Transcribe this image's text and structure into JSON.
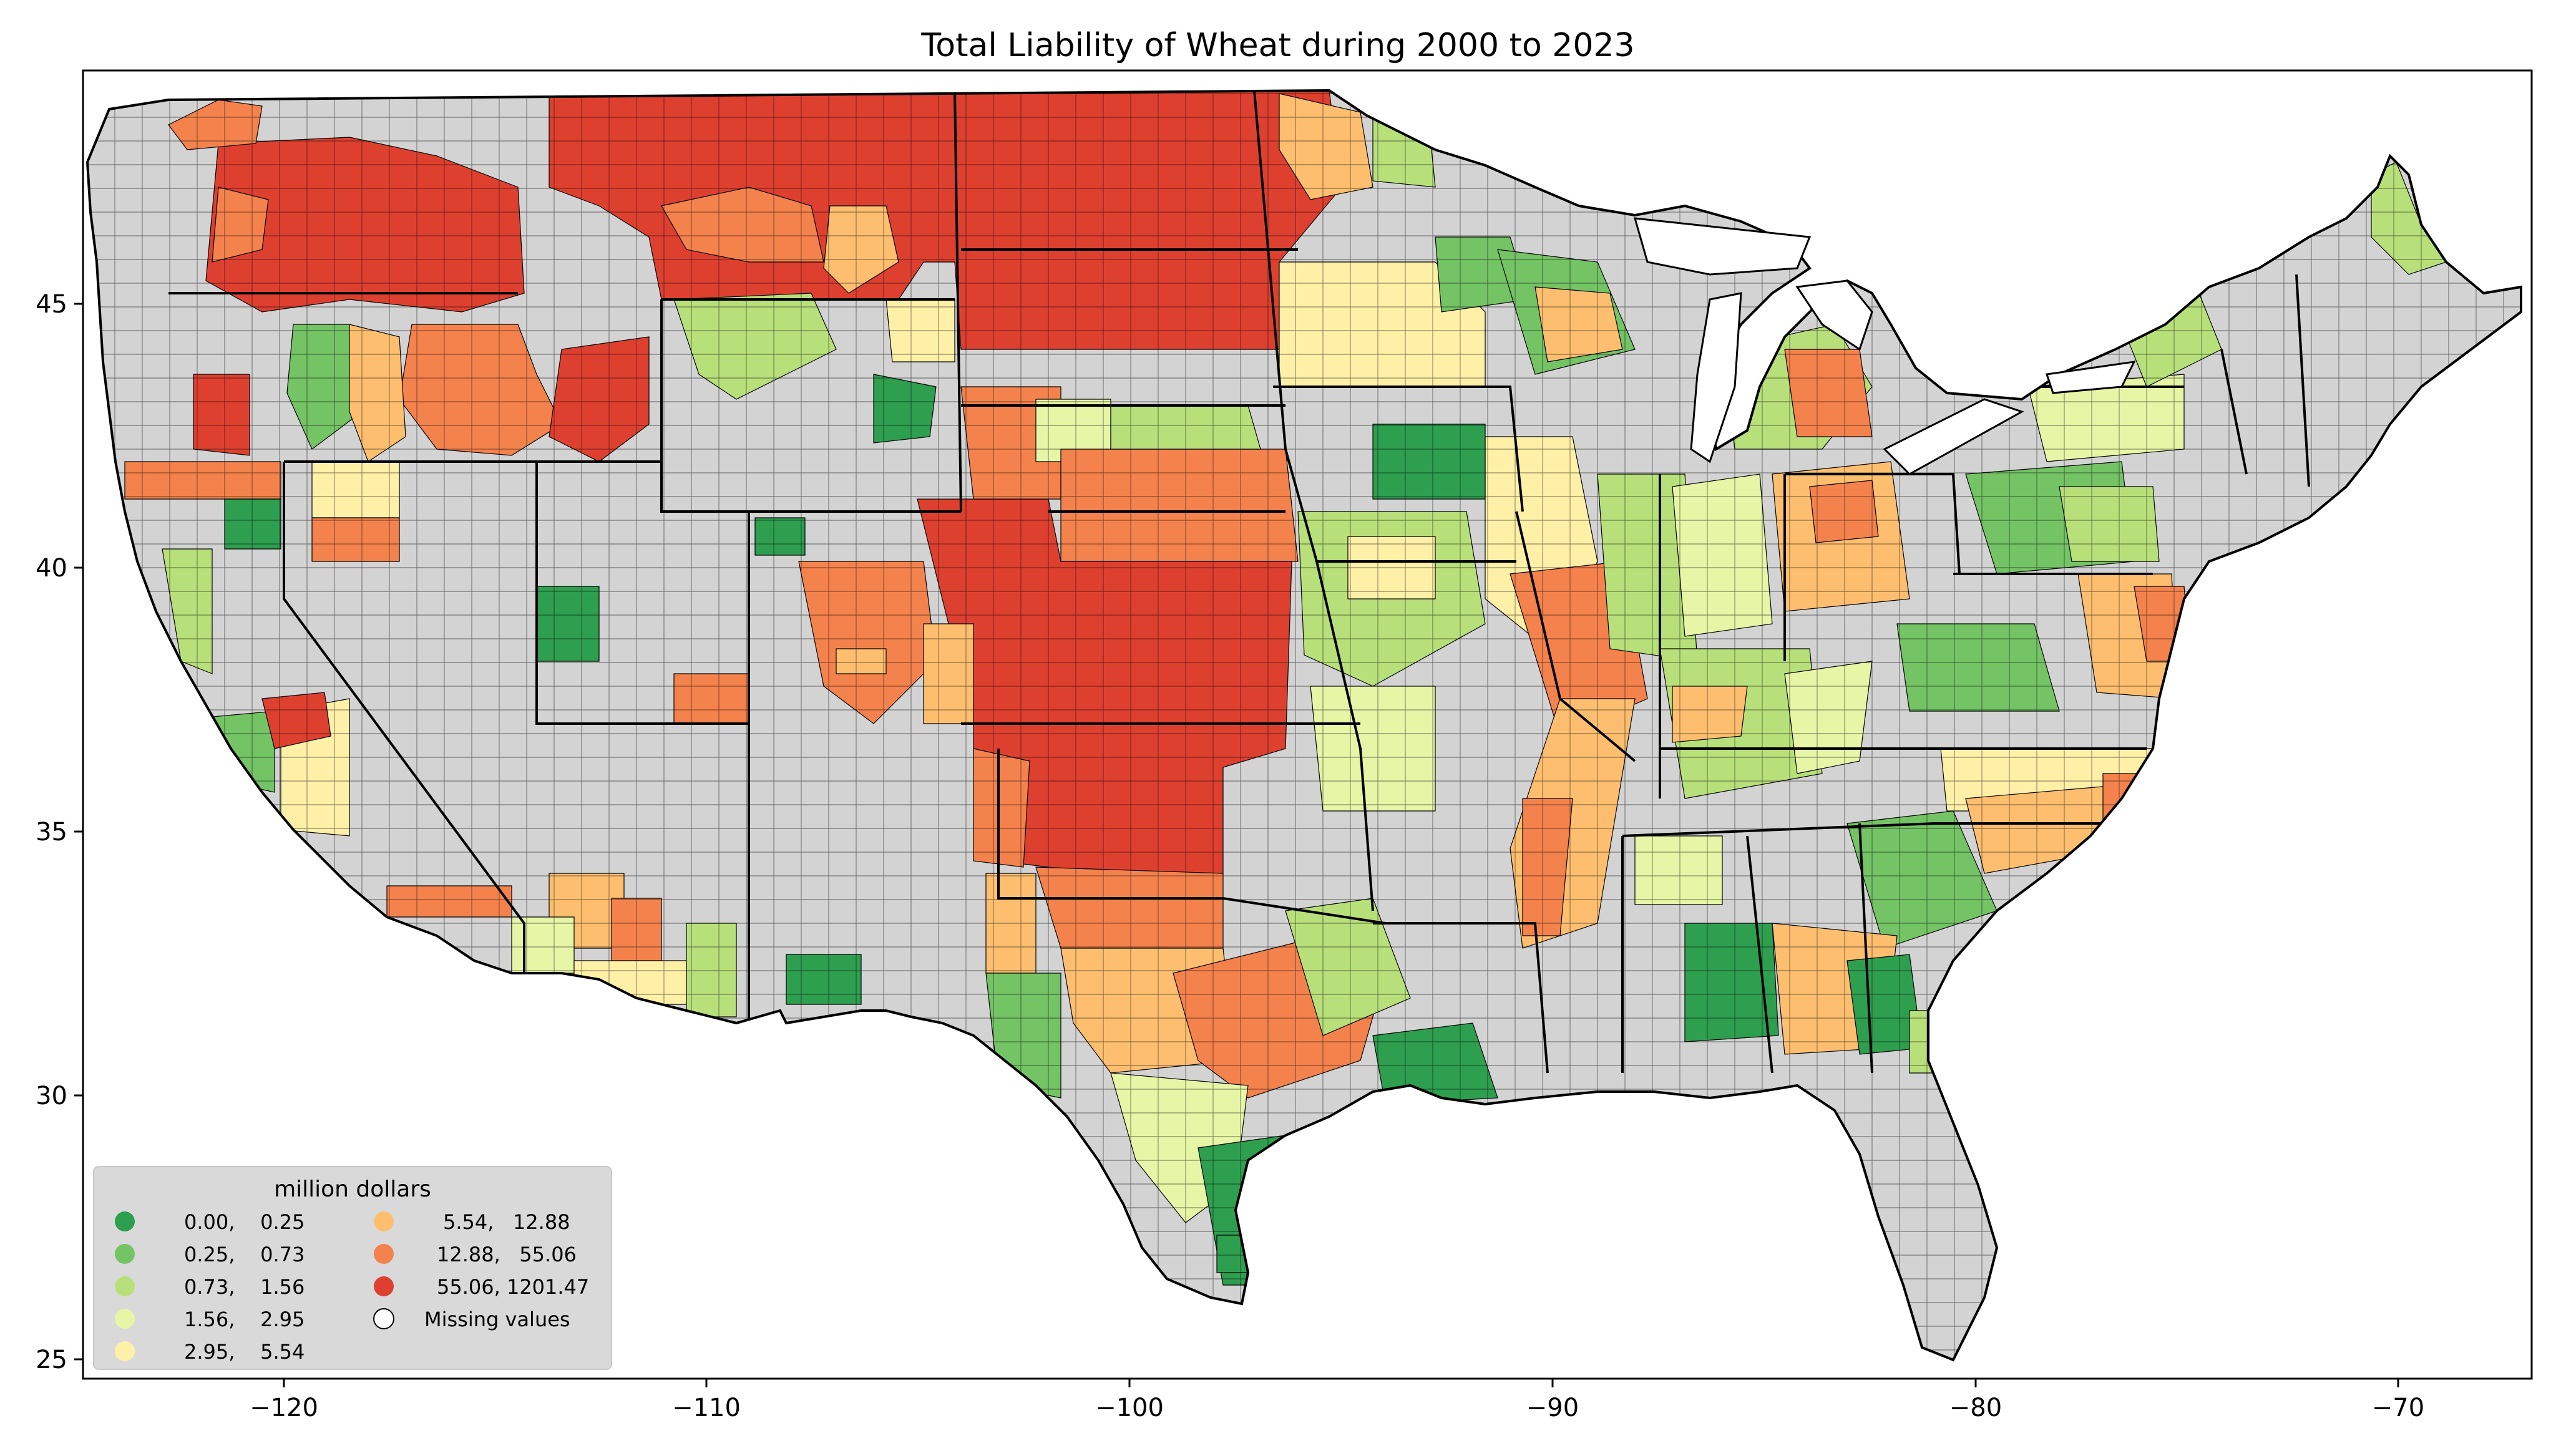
{
  "title": "Total Liability of Wheat during 2000 to 2023",
  "axes": {
    "x_ticks": [
      "−120",
      "−110",
      "−100",
      "−90",
      "−80",
      "−70"
    ],
    "y_ticks": [
      "45",
      "40",
      "35",
      "30",
      "25"
    ]
  },
  "legend": {
    "title": "million dollars",
    "items": [
      {
        "label": "0.00,    0.25",
        "color": "#2e9e4f"
      },
      {
        "label": "0.25,    0.73",
        "color": "#74c365"
      },
      {
        "label": "0.73,    1.56",
        "color": "#b8e07a"
      },
      {
        "label": "1.56,    2.95",
        "color": "#e6f5a6"
      },
      {
        "label": "2.95,    5.54",
        "color": "#fff0a8"
      },
      {
        "label": "5.54,   12.88",
        "color": "#fdbf6f"
      },
      {
        "label": "12.88,   55.06",
        "color": "#f4824d"
      },
      {
        "label": "55.06, 1201.47",
        "color": "#de4030"
      },
      {
        "label": "Missing values",
        "color": "#d3d3d3"
      }
    ]
  },
  "colors": {
    "missing": "#d3d3d3",
    "border": "#000000",
    "frame": "#000000"
  }
}
